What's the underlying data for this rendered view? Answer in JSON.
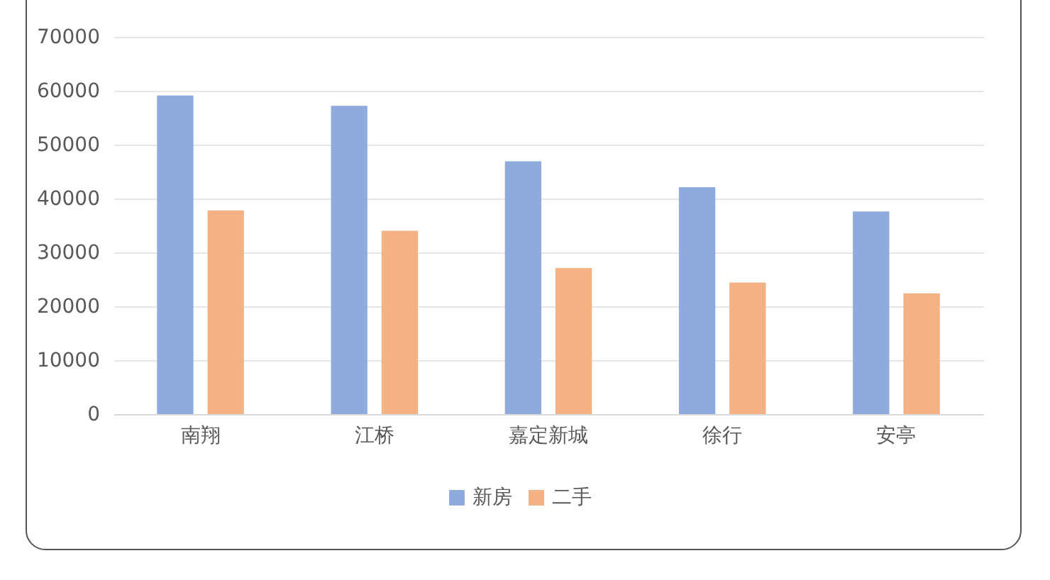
{
  "chart_data": {
    "type": "bar",
    "categories": [
      "南翔",
      "江桥",
      "嘉定新城",
      "徐行",
      "安亭"
    ],
    "series": [
      {
        "name": "新房",
        "color": "#8faadc",
        "values": [
          59100,
          57200,
          46900,
          42100,
          37600
        ]
      },
      {
        "name": "二手",
        "color": "#f4b183",
        "values": [
          37800,
          34000,
          27100,
          24400,
          22400
        ]
      }
    ],
    "ylim": [
      0,
      70000
    ],
    "yticks": [
      0,
      10000,
      20000,
      30000,
      40000,
      50000,
      60000,
      70000
    ],
    "grid": "y",
    "legend": "bottom"
  }
}
